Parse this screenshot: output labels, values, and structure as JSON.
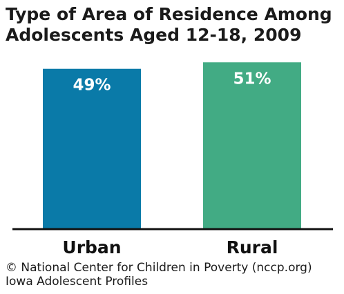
{
  "title_lines": [
    "Type of Area of Residence Among",
    "Adolescents Aged 12-18, 2009"
  ],
  "credit_lines": [
    "© National Center for Children in Poverty (nccp.org)",
    "Iowa Adolescent Profiles"
  ],
  "colors": {
    "urban": "#0a7aa8",
    "rural": "#42ab84",
    "axis": "#111111",
    "label_text": "#ffffff",
    "category_text": "#111111"
  },
  "chart_data": {
    "type": "bar",
    "categories": [
      "Urban",
      "Rural"
    ],
    "values": [
      49,
      51
    ],
    "value_labels": [
      "49%",
      "51%"
    ],
    "title": "Type of Area of Residence Among Adolescents Aged 12-18, 2009",
    "xlabel": "",
    "ylabel": "",
    "ylim": [
      0,
      53.6
    ],
    "grid": false,
    "legend": "none"
  }
}
